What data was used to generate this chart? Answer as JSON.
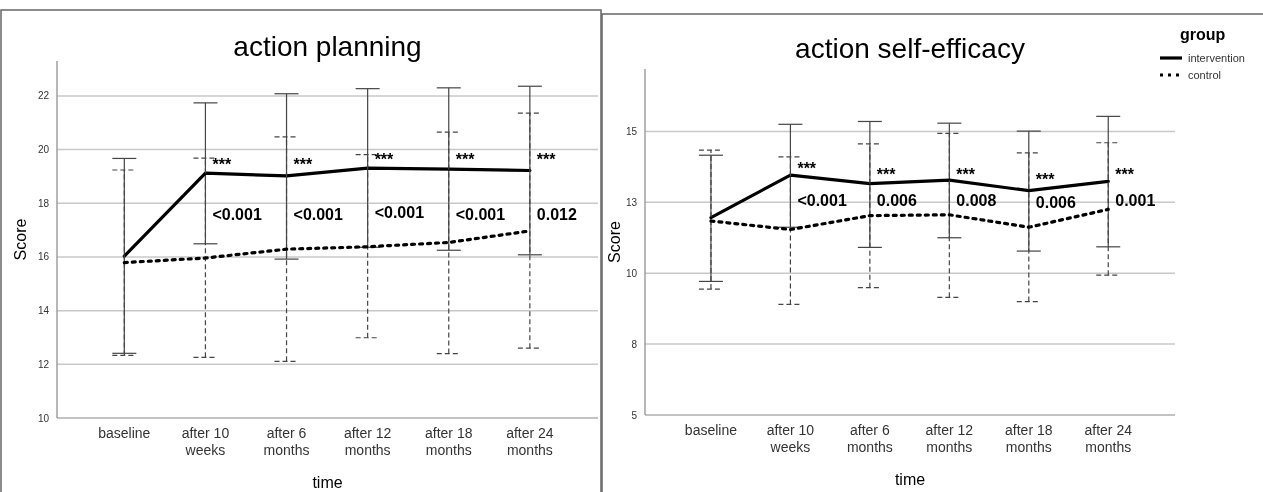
{
  "chart_data": [
    {
      "type": "line",
      "title": "action planning",
      "xlabel": "time",
      "ylabel": "Score",
      "categories": [
        "baseline",
        "after 10 weeks",
        "after 6 months",
        "after 12 months",
        "after 18 months",
        "after 24 months"
      ],
      "series": [
        {
          "color": "#000000",
          "line_style": "solid",
          "values": [
            16.03,
            19.12,
            19.02,
            19.31,
            19.27,
            19.22
          ],
          "errors": [
            [
              12.41,
              19.67
            ],
            [
              16.49,
              21.74
            ],
            [
              15.92,
              22.08
            ],
            [
              16.36,
              22.27
            ],
            [
              16.25,
              22.3
            ],
            [
              16.08,
              22.36
            ]
          ]
        },
        {
          "color": "#000000",
          "line_style": "dotted",
          "values": [
            15.79,
            15.96,
            16.29,
            16.38,
            16.54,
            16.97
          ],
          "errors": [
            [
              12.33,
              19.24
            ],
            [
              12.26,
              19.68
            ],
            [
              12.11,
              20.47
            ],
            [
              12.99,
              19.81
            ],
            [
              12.4,
              20.65
            ],
            [
              12.6,
              21.36
            ]
          ]
        }
      ],
      "ylim": [
        10,
        23.3
      ],
      "yticks": [
        10,
        12,
        14,
        16,
        18,
        20,
        22
      ],
      "grid": "y",
      "legend": false,
      "marker": "none",
      "annotations": [
        {
          "text": "***",
          "x": "after 10 weeks",
          "y": 19.45
        },
        {
          "text": "***",
          "x": "after 6 months",
          "y": 19.45
        },
        {
          "text": "***",
          "x": "after 12 months",
          "y": 19.65
        },
        {
          "text": "***",
          "x": "after 18 months",
          "y": 19.65
        },
        {
          "text": "***",
          "x": "after 24 months",
          "y": 19.65
        },
        {
          "text": "<0.001",
          "x": "after 10 weeks",
          "y": 17.6
        },
        {
          "text": "<0.001",
          "x": "after 6 months",
          "y": 17.6
        },
        {
          "text": "<0.001",
          "x": "after 12 months",
          "y": 17.65
        },
        {
          "text": "<0.001",
          "x": "after 18 months",
          "y": 17.6
        },
        {
          "text": "0.012",
          "x": "after 24 months",
          "y": 17.6
        }
      ]
    },
    {
      "type": "line",
      "title": "action self-efficacy",
      "xlabel": "time",
      "ylabel": "Score",
      "legend_title": "group",
      "categories": [
        "baseline",
        "after 10 weeks",
        "after 6 months",
        "after 12 months",
        "after 18 months",
        "after 24 months"
      ],
      "series": [
        {
          "name": "intervention",
          "color": "#000000",
          "line_style": "solid",
          "values": [
            11.96,
            13.46,
            13.16,
            13.28,
            12.91,
            13.24
          ],
          "errors": [
            [
              9.71,
              14.16
            ],
            [
              11.62,
              15.25
            ],
            [
              10.91,
              15.35
            ],
            [
              11.25,
              15.29
            ],
            [
              10.78,
              15.01
            ],
            [
              10.93,
              15.53
            ]
          ]
        },
        {
          "name": "control",
          "color": "#000000",
          "line_style": "dotted",
          "values": [
            11.84,
            11.54,
            12.03,
            12.06,
            11.62,
            12.25
          ],
          "errors": [
            [
              9.44,
              14.34
            ],
            [
              8.9,
              14.1
            ],
            [
              9.49,
              14.56
            ],
            [
              9.15,
              14.93
            ],
            [
              9.0,
              14.24
            ],
            [
              9.93,
              14.6
            ]
          ]
        }
      ],
      "ylim": [
        5,
        17.2
      ],
      "yticks": [
        5,
        {
          "value": 7.5,
          "label": "8"
        },
        10,
        {
          "value": 12.5,
          "label": "13"
        },
        15
      ],
      "grid": "y",
      "legend": "top right",
      "marker": "none",
      "annotations": [
        {
          "text": "***",
          "x": "after 10 weeks",
          "y": 13.68
        },
        {
          "text": "***",
          "x": "after 6 months",
          "y": 13.47
        },
        {
          "text": "***",
          "x": "after 12 months",
          "y": 13.5
        },
        {
          "text": "***",
          "x": "after 18 months",
          "y": 13.3
        },
        {
          "text": "***",
          "x": "after 24 months",
          "y": 13.5
        },
        {
          "text": "<0.001",
          "x": "after 10 weeks",
          "y": 12.55
        },
        {
          "text": "0.006",
          "x": "after 6 months",
          "y": 12.55
        },
        {
          "text": "0.008",
          "x": "after 12 months",
          "y": 12.55
        },
        {
          "text": "0.006",
          "x": "after 18 months",
          "y": 12.5
        },
        {
          "text": "0.001",
          "x": "after 24 months",
          "y": 12.55
        }
      ]
    }
  ]
}
